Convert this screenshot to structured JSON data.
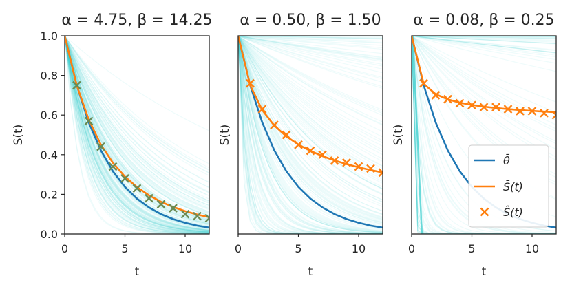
{
  "chart_data": [
    {
      "type": "line",
      "title": "α = 4.75, β = 14.25",
      "xlabel": "t",
      "ylabel": "S(t)",
      "xlim": [
        0,
        12
      ],
      "ylim": [
        0,
        1
      ],
      "xticks": [
        "0",
        "5",
        "10"
      ],
      "yticks": [
        "0.0",
        "0.2",
        "0.4",
        "0.6",
        "0.8",
        "1.0"
      ],
      "alpha": 4.75,
      "beta": 14.25,
      "theta_bar": 0.25,
      "series": [
        {
          "name": "θ̄",
          "x": [
            0,
            1,
            2,
            3,
            4,
            5,
            6,
            7,
            8,
            9,
            10,
            11,
            12
          ],
          "values": [
            1.0,
            0.75,
            0.5625,
            0.4219,
            0.3164,
            0.2373,
            0.178,
            0.1335,
            0.1001,
            0.0751,
            0.0563,
            0.0422,
            0.0317
          ]
        },
        {
          "name": "S̄(t)",
          "x": [
            0,
            1,
            2,
            3,
            4,
            5,
            6,
            7,
            8,
            9,
            10,
            11,
            12
          ],
          "values": [
            1.0,
            0.75,
            0.5762,
            0.4509,
            0.3587,
            0.2894,
            0.2363,
            0.1949,
            0.1622,
            0.1362,
            0.1152,
            0.0982,
            0.0842
          ]
        },
        {
          "name": "Ŝ(t)",
          "marker": "x",
          "x": [
            1,
            2,
            3,
            4,
            5,
            6,
            7,
            8,
            9,
            10,
            11,
            12
          ],
          "values": [
            0.75,
            0.57,
            0.44,
            0.34,
            0.28,
            0.23,
            0.18,
            0.15,
            0.13,
            0.1,
            0.09,
            0.08
          ]
        }
      ]
    },
    {
      "type": "line",
      "title": "α = 0.50, β = 1.50",
      "xlabel": "t",
      "ylabel": "S(t)",
      "xlim": [
        0,
        12
      ],
      "ylim": [
        0,
        1
      ],
      "xticks": [
        "0",
        "5",
        "10"
      ],
      "yticks": [],
      "alpha": 0.5,
      "beta": 1.5,
      "theta_bar": 0.25,
      "series": [
        {
          "name": "θ̄",
          "x": [
            0,
            1,
            2,
            3,
            4,
            5,
            6,
            7,
            8,
            9,
            10,
            11,
            12
          ],
          "values": [
            1.0,
            0.75,
            0.5625,
            0.4219,
            0.3164,
            0.2373,
            0.178,
            0.1335,
            0.1001,
            0.0751,
            0.0563,
            0.0422,
            0.0317
          ]
        },
        {
          "name": "S̄(t)",
          "x": [
            0,
            1,
            2,
            3,
            4,
            5,
            6,
            7,
            8,
            9,
            10,
            11,
            12
          ],
          "values": [
            1.0,
            0.75,
            0.625,
            0.5469,
            0.4922,
            0.4512,
            0.4189,
            0.3928,
            0.371,
            0.3525,
            0.3364,
            0.3224,
            0.3099
          ]
        },
        {
          "name": "Ŝ(t)",
          "marker": "x",
          "x": [
            1,
            2,
            3,
            4,
            5,
            6,
            7,
            8,
            9,
            10,
            11,
            12
          ],
          "values": [
            0.76,
            0.63,
            0.55,
            0.5,
            0.45,
            0.42,
            0.4,
            0.37,
            0.36,
            0.34,
            0.33,
            0.31
          ]
        }
      ]
    },
    {
      "type": "line",
      "title": "α = 0.08, β = 0.25",
      "xlabel": "t",
      "ylabel": "S(t)",
      "xlim": [
        0,
        12
      ],
      "ylim": [
        0,
        1
      ],
      "xticks": [
        "0",
        "5",
        "10"
      ],
      "yticks": [],
      "alpha": 0.08,
      "beta": 0.25,
      "theta_bar": 0.25,
      "legend": {
        "placement": "lower right",
        "entries": [
          "θ̄",
          "S̄(t)",
          "Ŝ(t)"
        ]
      },
      "series": [
        {
          "name": "θ̄",
          "x": [
            0,
            1,
            2,
            3,
            4,
            5,
            6,
            7,
            8,
            9,
            10,
            11,
            12
          ],
          "values": [
            1.0,
            0.75,
            0.5625,
            0.4219,
            0.3164,
            0.2373,
            0.178,
            0.1335,
            0.1001,
            0.0751,
            0.0563,
            0.0422,
            0.0317
          ]
        },
        {
          "name": "S̄(t)",
          "x": [
            0,
            1,
            2,
            3,
            4,
            5,
            6,
            7,
            8,
            9,
            10,
            11,
            12
          ],
          "values": [
            1.0,
            0.7576,
            0.7055,
            0.6791,
            0.6626,
            0.6511,
            0.6424,
            0.6355,
            0.6299,
            0.6252,
            0.6211,
            0.6175,
            0.6143
          ]
        },
        {
          "name": "Ŝ(t)",
          "marker": "x",
          "x": [
            1,
            2,
            3,
            4,
            5,
            6,
            7,
            8,
            9,
            10,
            11,
            12
          ],
          "values": [
            0.76,
            0.7,
            0.68,
            0.66,
            0.65,
            0.64,
            0.64,
            0.63,
            0.62,
            0.62,
            0.61,
            0.6
          ]
        }
      ]
    }
  ],
  "colors": {
    "theta_bar": "#1f77b4",
    "s_bar": "#ff7f0e",
    "s_hat": "#ff7f0e",
    "s_hat_dark": "#6a8b54",
    "samples": "#3fcfcf",
    "spine": "#262626"
  }
}
